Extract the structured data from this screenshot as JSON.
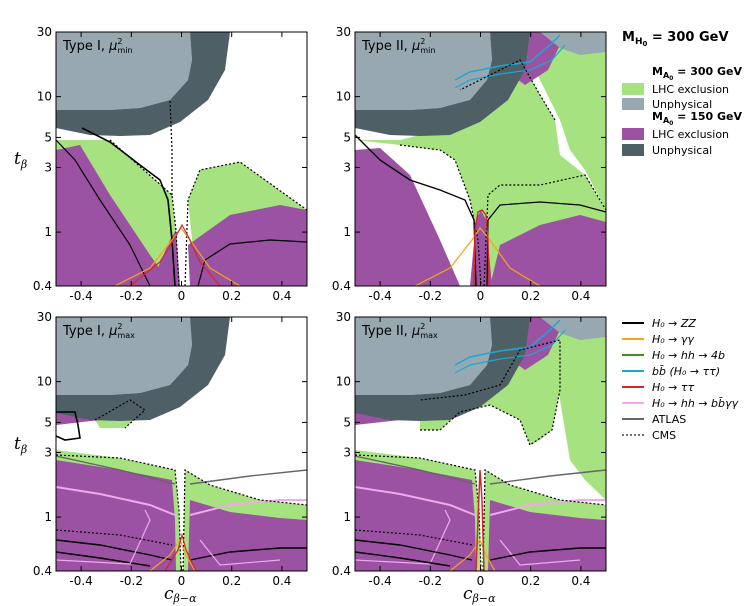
{
  "colors": {
    "lhc_300": "#a6e27f",
    "unphys_300": "#97a8b0",
    "lhc_150": "#9b52a2",
    "unphys_150": "#4e5f66",
    "ZZ": "#000000",
    "gg": "#f2a516",
    "hh4b": "#3f8f1c",
    "bbtautau": "#1aa9d6",
    "tautau": "#d7252a",
    "hhbbgg": "#f3a7ee",
    "atlas": "#666666",
    "cms": "#444444"
  },
  "header": {
    "mass_label": "M",
    "mass_sub": "H",
    "mass_subsub": "0",
    "mass_value": " = 300 GeV"
  },
  "legend_top": {
    "block1_label": "M",
    "block1_sub": "A",
    "block1_subsub": "0",
    "block1_value": " = 300 GeV",
    "block1_items": [
      "LHC exclusion",
      "Unphysical"
    ],
    "block2_label": "M",
    "block2_sub": "A",
    "block2_subsub": "0",
    "block2_value": " = 150 GeV",
    "block2_items": [
      "LHC exclusion",
      "Unphysical"
    ]
  },
  "legend_bottom": {
    "items": [
      {
        "key": "ZZ",
        "label": "H₀ → ZZ",
        "style": "solid"
      },
      {
        "key": "gg",
        "label": "H₀ → γγ",
        "style": "solid"
      },
      {
        "key": "hh4b",
        "label": "H₀ → hh → 4b",
        "style": "solid"
      },
      {
        "key": "bbtautau",
        "label": "bb̄ (H₀ → ττ)",
        "style": "solid"
      },
      {
        "key": "tautau",
        "label": "H₀ → ττ",
        "style": "solid"
      },
      {
        "key": "hhbbgg",
        "label": "H₀ → hh → bb̄γγ",
        "style": "solid"
      },
      {
        "key": "atlas",
        "label": "ATLAS",
        "style": "solid"
      },
      {
        "key": "cms",
        "label": "CMS",
        "style": "dotted"
      }
    ]
  },
  "axes": {
    "xlabel": "c",
    "xlabel_sub": "β−α",
    "ylabel": "t",
    "ylabel_sub": "β",
    "xticks": [
      "-0.4",
      "-0.2",
      "0",
      "0.2",
      "0.4"
    ],
    "yticks": [
      "0.4",
      "1",
      "3",
      "5",
      "10",
      "30"
    ]
  },
  "chart_data": [
    {
      "type": "area",
      "panel": "top-left",
      "title": "Type I, μ²min",
      "xlim": [
        -0.5,
        0.5
      ],
      "ylim": [
        0.4,
        30
      ],
      "yscale": "log"
    },
    {
      "type": "area",
      "panel": "top-right",
      "title": "Type II, μ²min",
      "xlim": [
        -0.5,
        0.5
      ],
      "ylim": [
        0.4,
        30
      ],
      "yscale": "log"
    },
    {
      "type": "area",
      "panel": "bottom-left",
      "title": "Type I, μ²max",
      "xlim": [
        -0.5,
        0.5
      ],
      "ylim": [
        0.4,
        30
      ],
      "yscale": "log"
    },
    {
      "type": "area",
      "panel": "bottom-right",
      "title": "Type II, μ²max",
      "xlim": [
        -0.5,
        0.5
      ],
      "ylim": [
        0.4,
        30
      ],
      "yscale": "log"
    }
  ],
  "panel_titles": [
    {
      "main": "Type I, ",
      "mu": "μ",
      "sup": "2",
      "sub": "min"
    },
    {
      "main": "Type II, ",
      "mu": "μ",
      "sup": "2",
      "sub": "min"
    },
    {
      "main": "Type I, ",
      "mu": "μ",
      "sup": "2",
      "sub": "max"
    },
    {
      "main": "Type II, ",
      "mu": "μ",
      "sup": "2",
      "sub": "max"
    }
  ]
}
